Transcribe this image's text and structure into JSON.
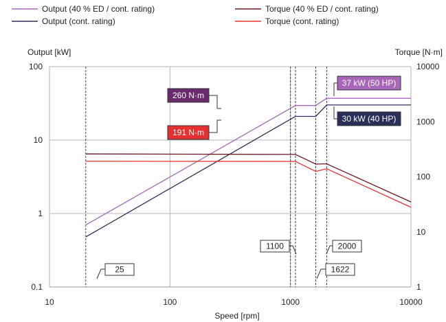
{
  "chart_data": {
    "type": "line",
    "title": "",
    "xlabel": "Speed [rpm]",
    "ylabel_left": "Output [kW]",
    "ylabel_right": "Torque [N·m]",
    "x_scale": "log",
    "y_scale": "log",
    "xlim": [
      10,
      10000
    ],
    "ylim_left": [
      0.1,
      100
    ],
    "ylim_right": [
      1,
      10000
    ],
    "x_ticks": [
      "10",
      "100",
      "1000",
      "10000"
    ],
    "y_left_ticks": [
      "0.1",
      "1",
      "10",
      "100"
    ],
    "y_right_ticks": [
      "1",
      "10",
      "100",
      "1000",
      "10000"
    ],
    "grid": true,
    "legend": {
      "placement": "top"
    },
    "series": [
      {
        "name": "Output (40 % ED / cont. rating)",
        "axis": "left",
        "color": "#a866b8",
        "x": [
          20,
          1100,
          1622,
          2000,
          10000
        ],
        "y": [
          0.7,
          29.5,
          29.5,
          37,
          37
        ]
      },
      {
        "name": "Output (cont. rating)",
        "axis": "left",
        "color": "#2a2f5a",
        "x": [
          20,
          1100,
          1622,
          2000,
          10000
        ],
        "y": [
          0.48,
          21,
          21,
          30,
          30
        ]
      },
      {
        "name": "Torque (40 % ED / cont. rating)",
        "axis": "right",
        "color": "#6a1a22",
        "x": [
          20,
          1100,
          1622,
          2000,
          10000
        ],
        "y": [
          260,
          255,
          170,
          172,
          35
        ]
      },
      {
        "name": "Torque (cont. rating)",
        "axis": "right",
        "color": "#e53030",
        "x": [
          20,
          1100,
          1622,
          2000,
          10000
        ],
        "y": [
          191,
          190,
          125,
          140,
          28
        ]
      }
    ],
    "vlines": [
      20,
      1000,
      1100,
      1622,
      2000
    ],
    "annotations": [
      {
        "text": "260 N·m",
        "bg": "#6a2a6e",
        "color": "#ffffff"
      },
      {
        "text": "191 N·m",
        "bg": "#e53030",
        "color": "#ffffff"
      },
      {
        "text": "37 kW (50 HP)",
        "bg": "#a866b8",
        "color": "#ffffff"
      },
      {
        "text": "30 kW (40 HP)",
        "bg": "#2a2f5a",
        "color": "#ffffff"
      },
      {
        "text": "25",
        "bg": "#ffffff",
        "color": "#222222"
      },
      {
        "text": "1100",
        "bg": "#ffffff",
        "color": "#222222"
      },
      {
        "text": "1622",
        "bg": "#ffffff",
        "color": "#222222"
      },
      {
        "text": "2000",
        "bg": "#ffffff",
        "color": "#222222"
      }
    ]
  }
}
